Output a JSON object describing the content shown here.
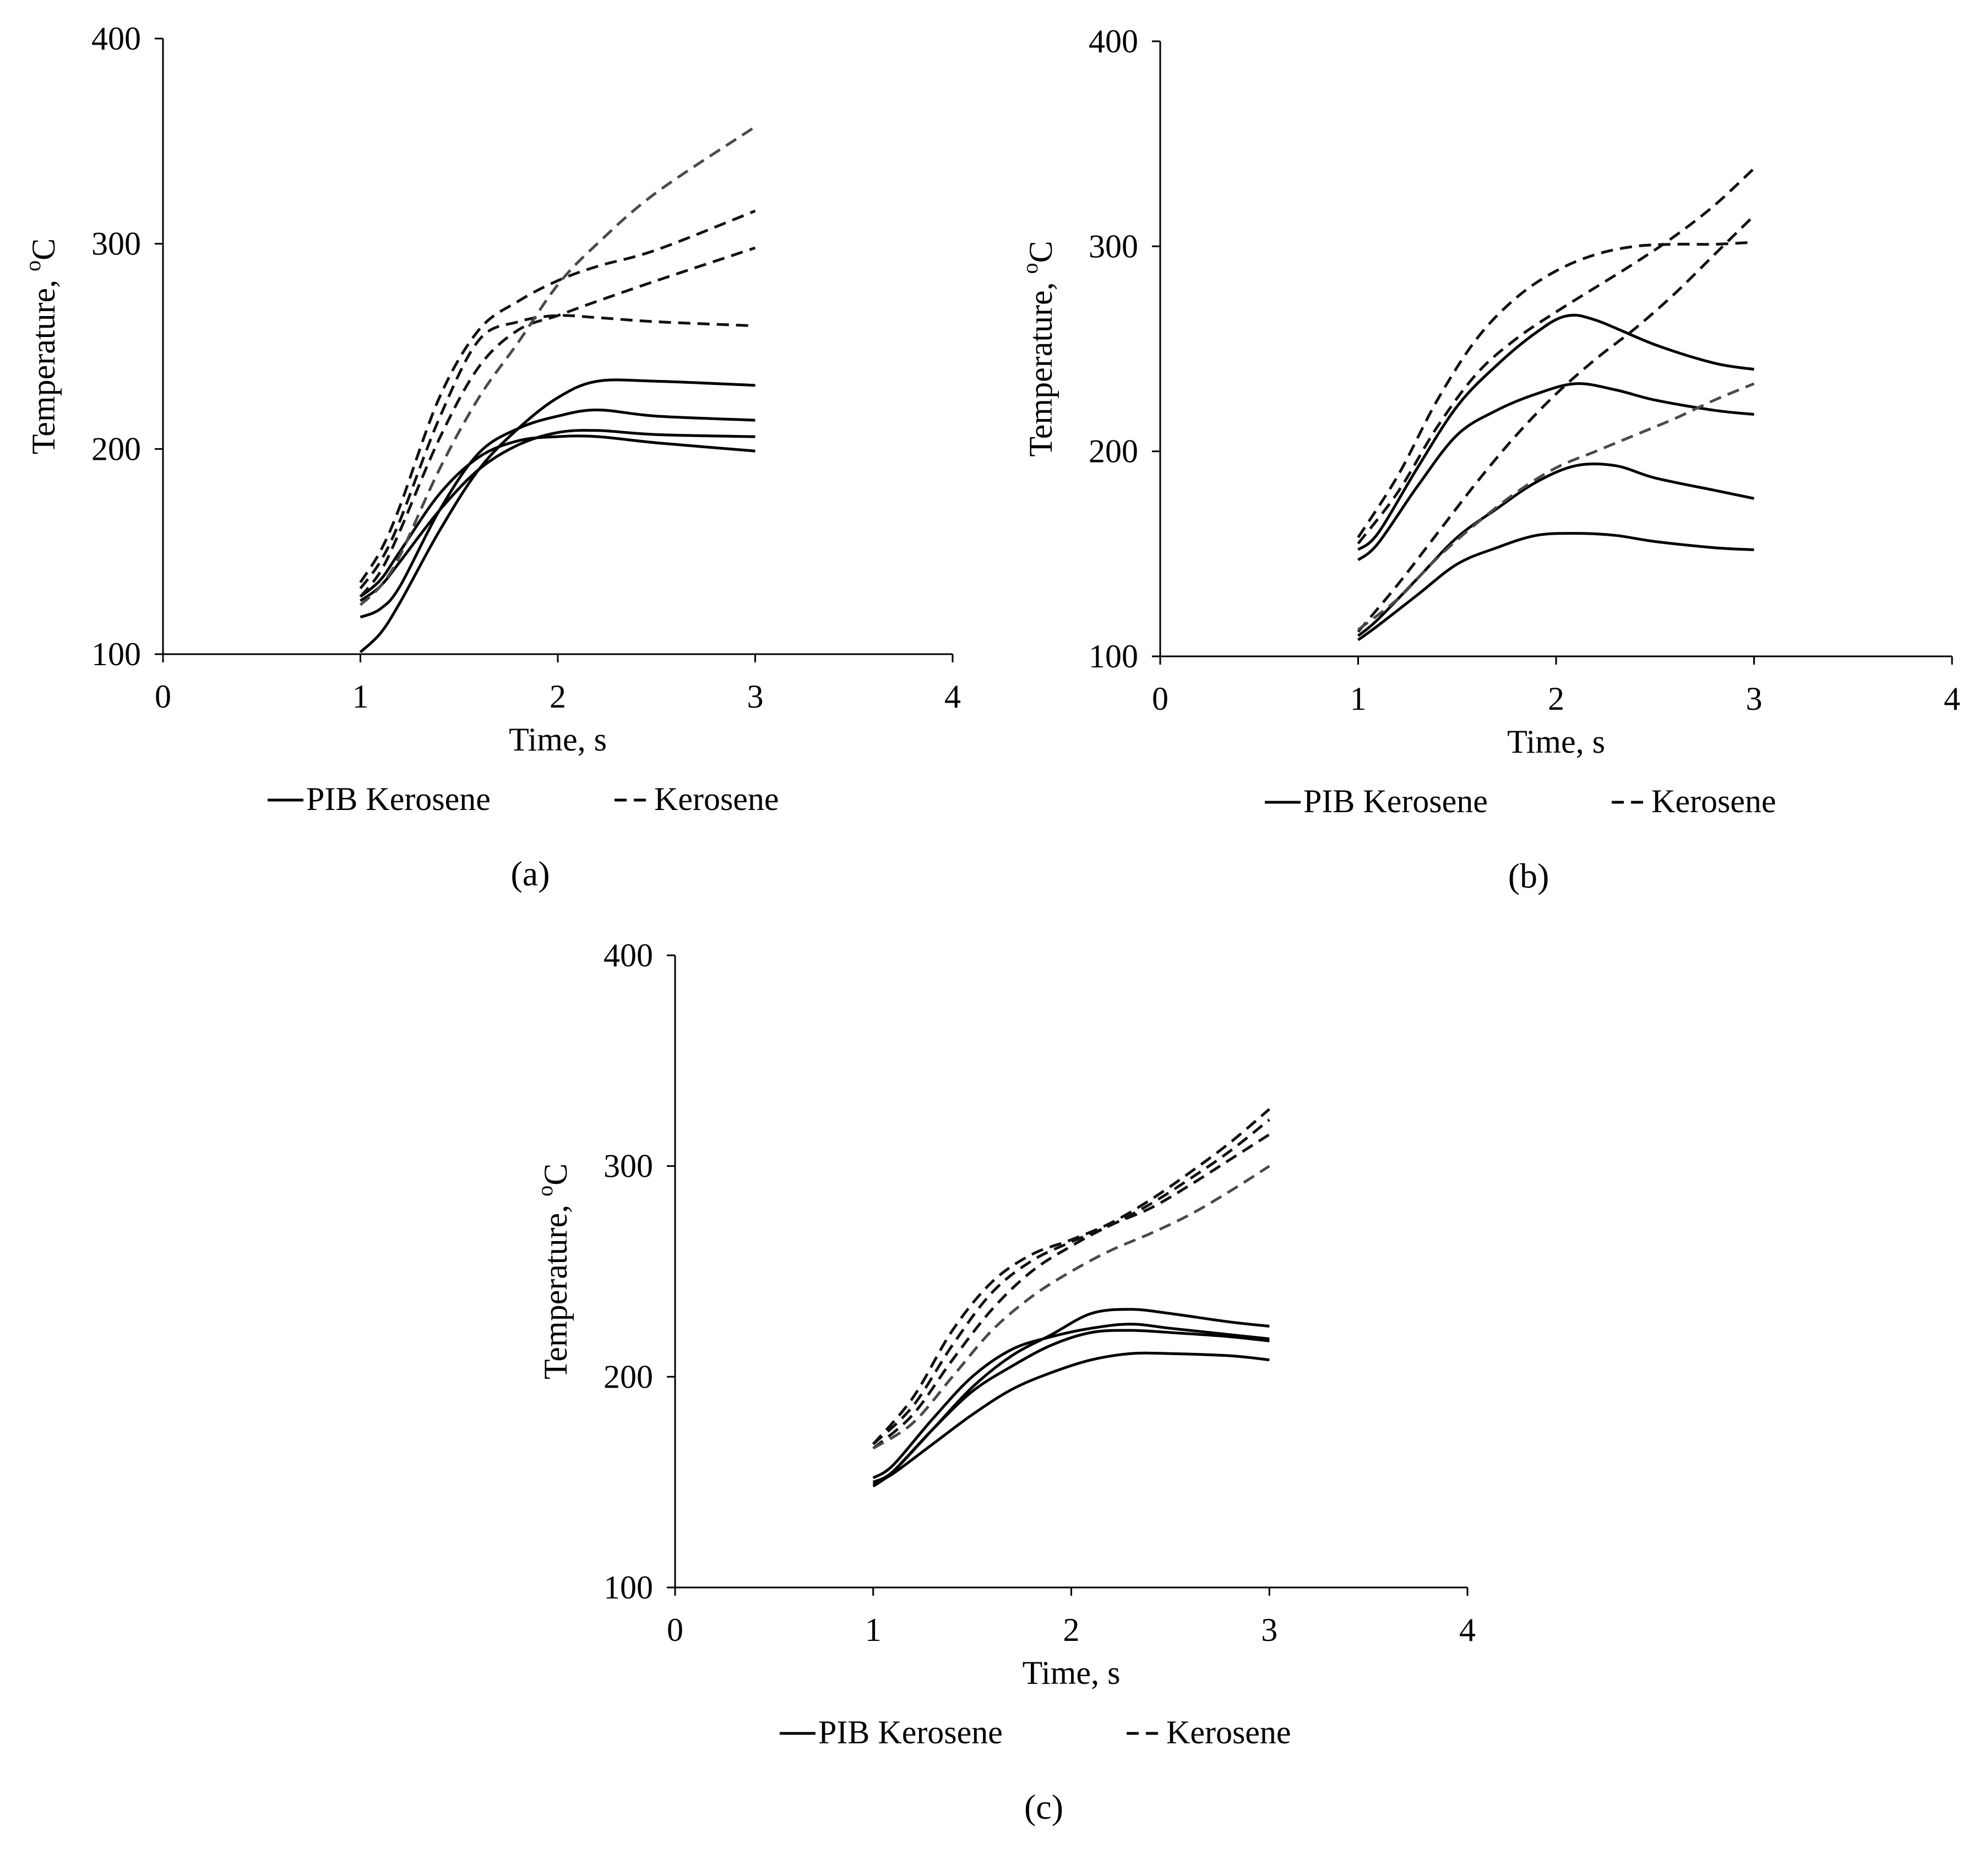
{
  "figure": {
    "legend": {
      "solid_label": "PIB Kerosene",
      "dashed_label": "Kerosene"
    }
  },
  "chart_data": [
    {
      "panel": "a",
      "panel_label": "(a)",
      "type": "line",
      "xlabel": "Time, s",
      "ylabel": "Temperature,",
      "ylabel_sup": "o",
      "ylabel_unit": "C",
      "xlim": [
        0,
        4
      ],
      "ylim": [
        100,
        400
      ],
      "xticks": [
        0,
        1,
        2,
        3,
        4
      ],
      "yticks": [
        100,
        200,
        300,
        400
      ],
      "grid": false,
      "legend_position": "bottom",
      "series": [
        {
          "name": "PIB Kerosene",
          "style": "solid",
          "x": [
            1.0,
            1.1,
            1.2,
            1.4,
            1.6,
            1.8,
            2.0,
            2.2,
            2.5,
            3.0
          ],
          "y": [
            101,
            110,
            125,
            160,
            190,
            210,
            225,
            233,
            233,
            231
          ]
        },
        {
          "name": "PIB Kerosene",
          "style": "solid",
          "x": [
            1.0,
            1.1,
            1.2,
            1.4,
            1.6,
            1.8,
            2.0,
            2.2,
            2.5,
            3.0
          ],
          "y": [
            118,
            122,
            133,
            170,
            198,
            210,
            216,
            219,
            216,
            214
          ]
        },
        {
          "name": "PIB Kerosene",
          "style": "solid",
          "x": [
            1.0,
            1.1,
            1.2,
            1.4,
            1.6,
            1.8,
            2.0,
            2.2,
            2.5,
            3.0
          ],
          "y": [
            126,
            133,
            145,
            170,
            190,
            202,
            208,
            209,
            207,
            206
          ]
        },
        {
          "name": "PIB Kerosene",
          "style": "solid",
          "x": [
            1.0,
            1.1,
            1.2,
            1.4,
            1.6,
            1.8,
            2.0,
            2.2,
            2.5,
            3.0
          ],
          "y": [
            128,
            136,
            150,
            178,
            196,
            204,
            206,
            206,
            203,
            199
          ]
        },
        {
          "name": "Kerosene",
          "style": "dashed",
          "x": [
            1.0,
            1.1,
            1.2,
            1.4,
            1.6,
            1.8,
            2.0,
            2.2,
            2.5,
            3.0
          ],
          "y": [
            132,
            145,
            165,
            215,
            253,
            262,
            265,
            264,
            262,
            260
          ]
        },
        {
          "name": "Kerosene",
          "style": "dashed",
          "x": [
            1.0,
            1.1,
            1.2,
            1.4,
            1.6,
            1.8,
            2.0,
            2.2,
            2.5,
            3.0
          ],
          "y": [
            135,
            150,
            172,
            225,
            258,
            272,
            282,
            289,
            297,
            316
          ]
        },
        {
          "name": "Kerosene",
          "style": "dashed",
          "x": [
            1.0,
            1.1,
            1.2,
            1.4,
            1.6,
            1.8,
            2.0,
            2.2,
            2.5,
            3.0
          ],
          "y": [
            128,
            140,
            160,
            205,
            240,
            258,
            265,
            272,
            282,
            298
          ]
        },
        {
          "name": "Kerosene",
          "style": "dashed",
          "x": [
            1.0,
            1.1,
            1.2,
            1.4,
            1.6,
            1.8,
            2.0,
            2.2,
            2.5,
            3.0
          ],
          "y": [
            124,
            133,
            148,
            190,
            225,
            252,
            280,
            300,
            325,
            357
          ]
        }
      ]
    },
    {
      "panel": "b",
      "panel_label": "(b)",
      "type": "line",
      "xlabel": "Time, s",
      "ylabel": "Temperature,",
      "ylabel_sup": "o",
      "ylabel_unit": "C",
      "xlim": [
        0,
        4
      ],
      "ylim": [
        100,
        400
      ],
      "xticks": [
        0,
        1,
        2,
        3,
        4
      ],
      "yticks": [
        100,
        200,
        300,
        400
      ],
      "grid": false,
      "legend_position": "bottom",
      "series": [
        {
          "name": "PIB Kerosene",
          "style": "solid",
          "x": [
            1.0,
            1.1,
            1.3,
            1.5,
            1.7,
            1.9,
            2.05,
            2.2,
            2.5,
            2.8,
            3.0
          ],
          "y": [
            152,
            160,
            192,
            222,
            242,
            258,
            266,
            264,
            252,
            243,
            240
          ]
        },
        {
          "name": "PIB Kerosene",
          "style": "solid",
          "x": [
            1.0,
            1.1,
            1.3,
            1.5,
            1.7,
            1.9,
            2.1,
            2.3,
            2.5,
            2.8,
            3.0
          ],
          "y": [
            147,
            155,
            183,
            208,
            220,
            228,
            233,
            230,
            225,
            220,
            218
          ]
        },
        {
          "name": "PIB Kerosene",
          "style": "solid",
          "x": [
            1.0,
            1.1,
            1.3,
            1.5,
            1.7,
            1.9,
            2.1,
            2.3,
            2.5,
            2.8,
            3.0
          ],
          "y": [
            110,
            118,
            138,
            158,
            172,
            185,
            193,
            193,
            187,
            181,
            177
          ]
        },
        {
          "name": "PIB Kerosene",
          "style": "solid",
          "x": [
            1.0,
            1.1,
            1.3,
            1.5,
            1.7,
            1.9,
            2.1,
            2.3,
            2.5,
            2.8,
            3.0
          ],
          "y": [
            108,
            115,
            130,
            145,
            153,
            159,
            160,
            159,
            156,
            153,
            152
          ]
        },
        {
          "name": "Kerosene",
          "style": "dashed",
          "x": [
            1.0,
            1.2,
            1.4,
            1.6,
            1.8,
            2.0,
            2.2,
            2.4,
            2.6,
            2.8,
            3.0
          ],
          "y": [
            158,
            188,
            225,
            255,
            275,
            288,
            296,
            300,
            301,
            301,
            302
          ]
        },
        {
          "name": "Kerosene",
          "style": "dashed",
          "x": [
            1.0,
            1.2,
            1.4,
            1.6,
            1.8,
            2.0,
            2.2,
            2.4,
            2.6,
            2.8,
            3.0
          ],
          "y": [
            155,
            180,
            212,
            238,
            255,
            268,
            280,
            292,
            305,
            320,
            338
          ]
        },
        {
          "name": "Kerosene",
          "style": "dashed",
          "x": [
            1.0,
            1.2,
            1.4,
            1.6,
            1.8,
            2.0,
            2.2,
            2.4,
            2.6,
            2.8,
            3.0
          ],
          "y": [
            112,
            135,
            160,
            185,
            208,
            228,
            245,
            260,
            277,
            296,
            315
          ]
        },
        {
          "name": "Kerosene",
          "style": "dashed",
          "x": [
            1.0,
            1.2,
            1.4,
            1.6,
            1.8,
            2.0,
            2.2,
            2.4,
            2.6,
            2.8,
            3.0
          ],
          "y": [
            113,
            128,
            148,
            165,
            180,
            192,
            200,
            208,
            216,
            225,
            233
          ]
        }
      ]
    },
    {
      "panel": "c",
      "panel_label": "(c)",
      "type": "line",
      "xlabel": "Time, s",
      "ylabel": "Temperature,",
      "ylabel_sup": "o",
      "ylabel_unit": "C",
      "xlim": [
        0,
        4
      ],
      "ylim": [
        100,
        400
      ],
      "xticks": [
        0,
        1,
        2,
        3,
        4
      ],
      "yticks": [
        100,
        200,
        300,
        400
      ],
      "grid": false,
      "legend_position": "bottom",
      "series": [
        {
          "name": "PIB Kerosene",
          "style": "solid",
          "x": [
            1.0,
            1.1,
            1.3,
            1.5,
            1.7,
            1.9,
            2.1,
            2.3,
            2.5,
            2.8,
            3.0
          ],
          "y": [
            150,
            155,
            175,
            195,
            210,
            220,
            230,
            232,
            230,
            226,
            224
          ]
        },
        {
          "name": "PIB Kerosene",
          "style": "solid",
          "x": [
            1.0,
            1.1,
            1.3,
            1.5,
            1.7,
            1.9,
            2.1,
            2.3,
            2.5,
            2.8,
            3.0
          ],
          "y": [
            152,
            158,
            180,
            200,
            213,
            219,
            223,
            225,
            223,
            220,
            218
          ]
        },
        {
          "name": "PIB Kerosene",
          "style": "solid",
          "x": [
            1.0,
            1.1,
            1.3,
            1.5,
            1.7,
            1.9,
            2.1,
            2.3,
            2.5,
            2.8,
            3.0
          ],
          "y": [
            148,
            155,
            175,
            193,
            205,
            215,
            221,
            222,
            221,
            219,
            217
          ]
        },
        {
          "name": "PIB Kerosene",
          "style": "solid",
          "x": [
            1.0,
            1.1,
            1.3,
            1.5,
            1.7,
            1.9,
            2.1,
            2.3,
            2.5,
            2.8,
            3.0
          ],
          "y": [
            149,
            154,
            168,
            182,
            194,
            202,
            208,
            211,
            211,
            210,
            208
          ]
        },
        {
          "name": "Kerosene",
          "style": "dashed",
          "x": [
            1.0,
            1.2,
            1.4,
            1.6,
            1.8,
            2.0,
            2.2,
            2.4,
            2.6,
            2.8,
            3.0
          ],
          "y": [
            168,
            190,
            222,
            245,
            258,
            265,
            273,
            284,
            297,
            311,
            327
          ]
        },
        {
          "name": "Kerosene",
          "style": "dashed",
          "x": [
            1.0,
            1.2,
            1.4,
            1.6,
            1.8,
            2.0,
            2.2,
            2.4,
            2.6,
            2.8,
            3.0
          ],
          "y": [
            168,
            186,
            215,
            240,
            255,
            264,
            272,
            282,
            294,
            307,
            322
          ]
        },
        {
          "name": "Kerosene",
          "style": "dashed",
          "x": [
            1.0,
            1.2,
            1.4,
            1.6,
            1.8,
            2.0,
            2.2,
            2.4,
            2.6,
            2.8,
            3.0
          ],
          "y": [
            166,
            182,
            208,
            232,
            250,
            262,
            272,
            280,
            291,
            303,
            315
          ]
        },
        {
          "name": "Kerosene",
          "style": "dashed",
          "x": [
            1.0,
            1.2,
            1.4,
            1.6,
            1.8,
            2.0,
            2.2,
            2.4,
            2.6,
            2.8,
            3.0
          ],
          "y": [
            166,
            178,
            200,
            222,
            238,
            250,
            260,
            268,
            277,
            288,
            300
          ]
        }
      ]
    }
  ]
}
